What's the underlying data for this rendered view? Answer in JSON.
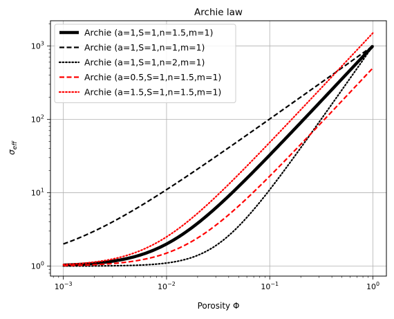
{
  "chart_data": {
    "type": "line",
    "title": "Archie law",
    "xlabel": "Porosity Φ",
    "ylabel_base": "σ",
    "ylabel_sub": "eff",
    "xscale": "log",
    "yscale": "log",
    "xlim": [
      0.00075,
      1.35
    ],
    "ylim": [
      0.73,
      2200
    ],
    "grid": true,
    "legend_position": "top-left",
    "x_ticks": [
      {
        "value": 0.001,
        "base": "10",
        "exp": "−3"
      },
      {
        "value": 0.01,
        "base": "10",
        "exp": "−2"
      },
      {
        "value": 0.1,
        "base": "10",
        "exp": "−1"
      },
      {
        "value": 1,
        "base": "10",
        "exp": "0"
      }
    ],
    "y_ticks": [
      {
        "value": 1,
        "base": "10",
        "exp": "0"
      },
      {
        "value": 10,
        "base": "10",
        "exp": "1"
      },
      {
        "value": 100,
        "base": "10",
        "exp": "2"
      },
      {
        "value": 1000,
        "base": "10",
        "exp": "3"
      }
    ],
    "series": [
      {
        "name": "Archie (a=1,S=1,n=1.5,m=1)",
        "a": 1,
        "S": 1,
        "n": 1.5,
        "m": 1,
        "color": "#000000",
        "style": "solid",
        "width": 4.5
      },
      {
        "name": "Archie (a=1,S=1,n=1,m=1)",
        "a": 1,
        "S": 1,
        "n": 1,
        "m": 1,
        "color": "#000000",
        "style": "dashed",
        "width": 2.2
      },
      {
        "name": "Archie (a=1,S=1,n=2,m=1)",
        "a": 1,
        "S": 1,
        "n": 2,
        "m": 1,
        "color": "#000000",
        "style": "dotted",
        "width": 2.2
      },
      {
        "name": "Archie (a=0.5,S=1,n=1.5,m=1)",
        "a": 0.5,
        "S": 1,
        "n": 1.5,
        "m": 1,
        "color": "#ff0000",
        "style": "dashed",
        "width": 2.2
      },
      {
        "name": "Archie (a=1.5,S=1,n=1.5,m=1)",
        "a": 1.5,
        "S": 1,
        "n": 1.5,
        "m": 1,
        "color": "#ff0000",
        "style": "dotted",
        "width": 2.2
      }
    ]
  }
}
